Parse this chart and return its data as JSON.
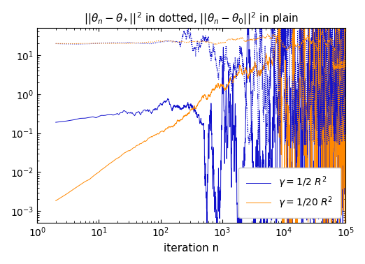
{
  "title": "$||\\theta_n - \\theta_*||^2$ in dotted, $||\\theta_n - \\theta_0||^2$ in plain",
  "xlabel": "iteration n",
  "ylabel": "",
  "xlim": [
    1,
    100000
  ],
  "ylim": [
    0.0005,
    50
  ],
  "blue_color": "#1111cc",
  "orange_color": "#ff8800",
  "legend_labels": [
    "$\\gamma = 1 / 2\\ R^2$",
    "$\\gamma = 1 / 20\\ R^2$"
  ],
  "n_total": 100000,
  "seed": 7
}
